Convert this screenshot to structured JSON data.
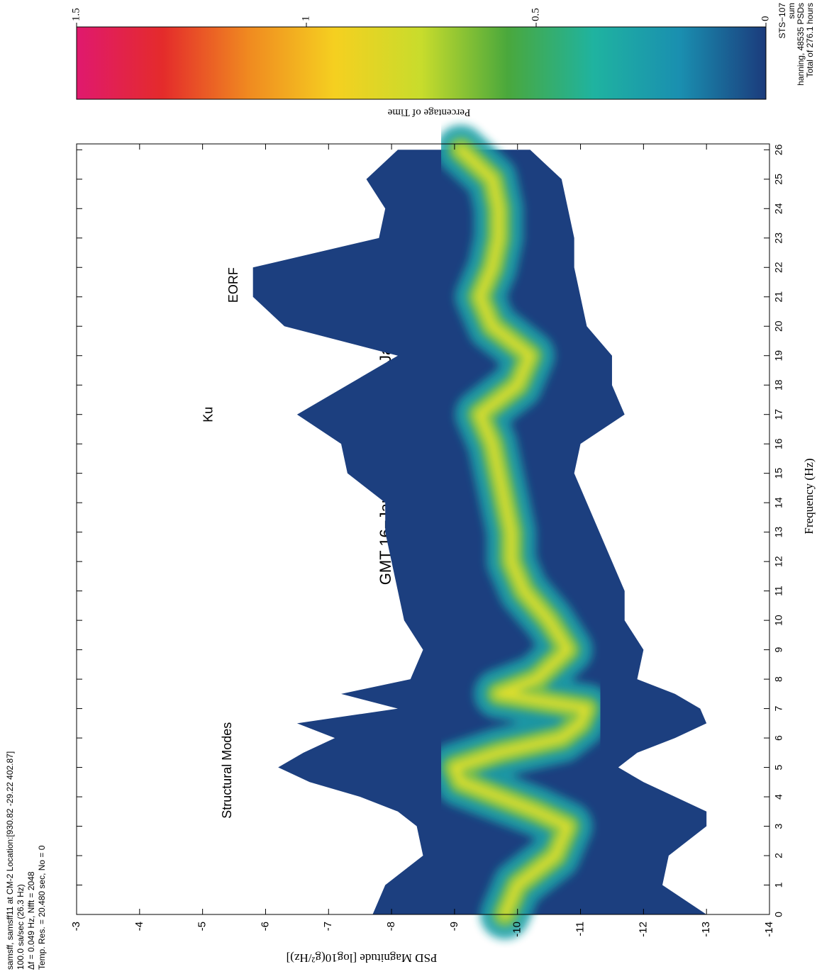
{
  "chart_data": {
    "type": "heatmap",
    "title": "GMT 16−Jan−2003 through 31−Jan−2003",
    "info_left": [
      "samsff, samsff11 at CM-2 Location:[930.82 -29.22 402.87]",
      "100.0 sa/sec (26.3 Hz)",
      "Δf = 0.049 Hz, Nfft = 2048",
      "Temp. Res. = 20.480 sec, No = 0"
    ],
    "info_right": [
      "STS−107",
      "sum",
      "hanning, 48535 PSDs",
      "Total of 276.1 hours"
    ],
    "xlabel": "Frequency (Hz)",
    "ylabel": "PSD Magnitude [log10(g²/Hz)]",
    "annotations": [
      {
        "text": "Structural Modes",
        "x": 4.9,
        "y": -5.4
      },
      {
        "text": "Ku",
        "x": 17.0,
        "y": -5.1
      },
      {
        "text": "EORF",
        "x": 21.4,
        "y": -5.5
      }
    ],
    "xlim": [
      0,
      26.2
    ],
    "ylim": [
      -14,
      -3
    ],
    "xticks": [
      0,
      1,
      2,
      3,
      4,
      5,
      6,
      7,
      8,
      9,
      10,
      11,
      12,
      13,
      14,
      15,
      16,
      17,
      18,
      19,
      20,
      21,
      22,
      23,
      24,
      25,
      26
    ],
    "yticks": [
      -3,
      -4,
      -5,
      -6,
      -7,
      -8,
      -9,
      -10,
      -11,
      -12,
      -13,
      -14
    ],
    "x": [
      0,
      1,
      2,
      3,
      3.5,
      4,
      4.5,
      5,
      5.5,
      6,
      6.5,
      7,
      7.5,
      8,
      9,
      10,
      11,
      12,
      13,
      14,
      15,
      16,
      17,
      18,
      19,
      20,
      21,
      22,
      23,
      24,
      25,
      26
    ],
    "envelope": {
      "color": "#1c3f7f",
      "upper": [
        -7.7,
        -7.9,
        -8.5,
        -8.4,
        -8.1,
        -7.5,
        -6.7,
        -6.2,
        -6.6,
        -7.1,
        -6.5,
        -8.1,
        -7.2,
        -8.3,
        -8.5,
        -8.2,
        -8.1,
        -8.0,
        -7.9,
        -7.9,
        -7.3,
        -7.2,
        -6.5,
        -7.3,
        -8.1,
        -6.3,
        -5.8,
        -5.8,
        -7.8,
        -7.9,
        -7.6,
        -8.1
      ],
      "lower": [
        -13.0,
        -12.3,
        -12.4,
        -13.0,
        -13.0,
        -12.5,
        -12.0,
        -11.6,
        -11.9,
        -12.5,
        -13.0,
        -12.9,
        -12.5,
        -11.9,
        -12.0,
        -11.7,
        -11.7,
        -11.5,
        -11.3,
        -11.1,
        -10.9,
        -11.0,
        -11.7,
        -11.5,
        -11.5,
        -11.1,
        -11.0,
        -10.9,
        -10.9,
        -10.8,
        -10.7,
        -10.2
      ]
    },
    "ridge": {
      "colors": [
        "#1aa0a8",
        "#8cc63f",
        "#e8e22a"
      ],
      "values": [
        -9.8,
        -10.0,
        -10.6,
        -10.8,
        -10.3,
        -9.7,
        -9.1,
        -9.0,
        -9.7,
        -10.7,
        -11.0,
        -11.1,
        -9.7,
        -10.3,
        -10.8,
        -10.5,
        -10.1,
        -9.9,
        -9.9,
        -9.8,
        -9.7,
        -9.6,
        -9.4,
        -10.0,
        -10.2,
        -9.6,
        -9.4,
        -9.6,
        -9.7,
        -9.7,
        -9.6,
        -9.1
      ]
    },
    "colorbar": {
      "label": "Percentage of Time",
      "lim": [
        0,
        1.5
      ],
      "ticks": [
        0,
        0.5,
        1,
        1.5
      ],
      "colors": [
        "#1b3b7c",
        "#1a8fb0",
        "#1fb3a0",
        "#4aa83c",
        "#c8dc2c",
        "#f5d020",
        "#f08a20",
        "#e42b2b",
        "#e0196e"
      ]
    }
  }
}
